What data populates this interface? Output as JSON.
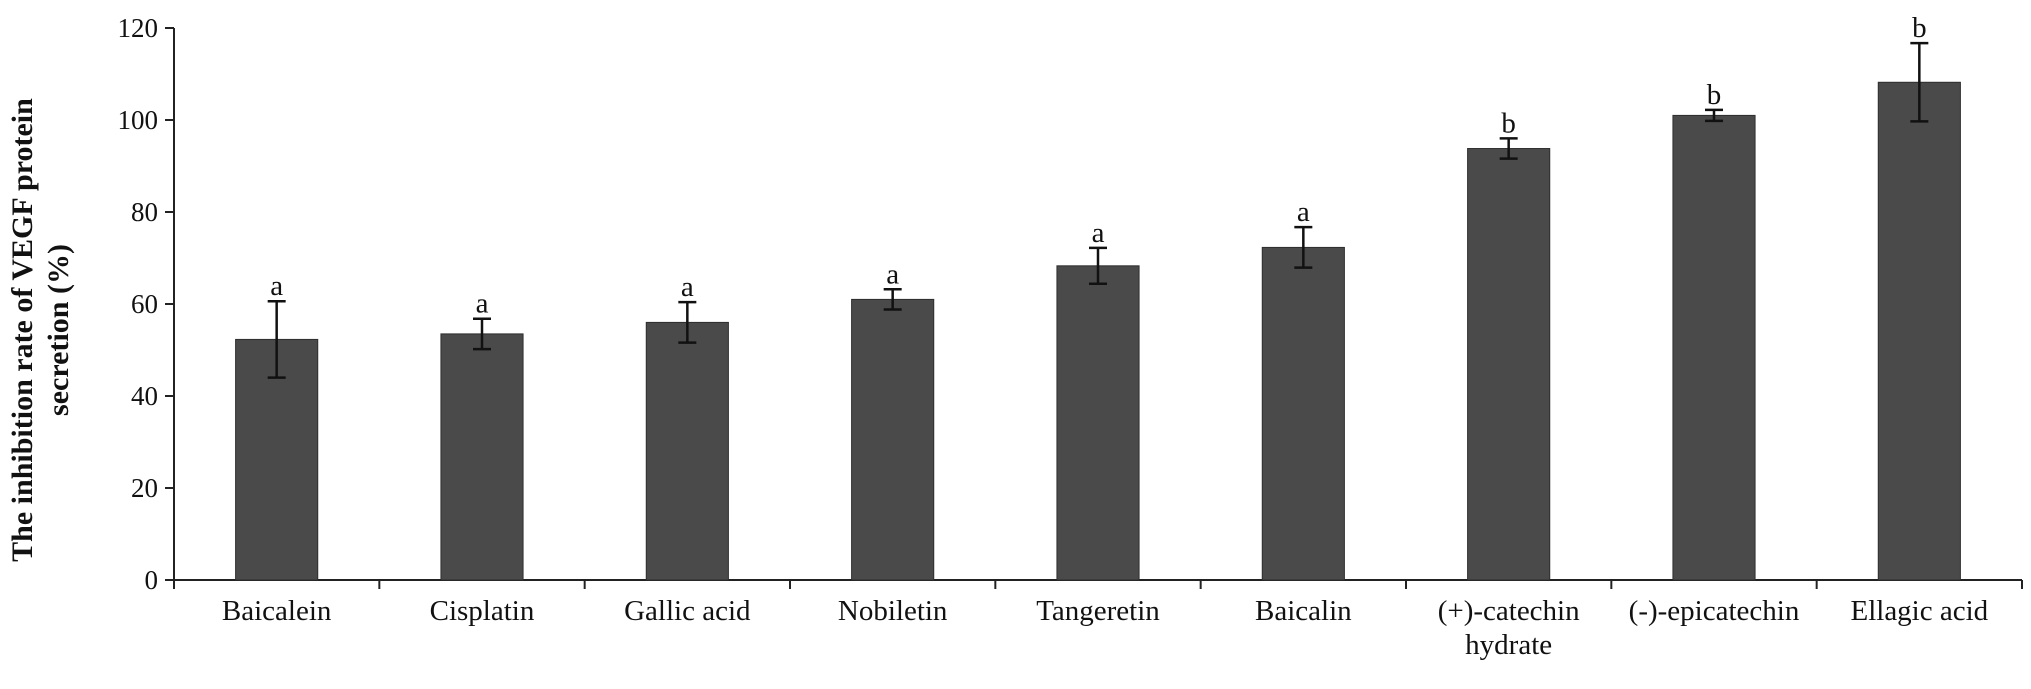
{
  "chart_data": {
    "type": "bar",
    "title": "",
    "xlabel": "",
    "ylabel_lines": [
      "The inhibition rate of VEGF protein",
      "secretion (%)"
    ],
    "ylim": [
      0,
      120
    ],
    "yticks": [
      0,
      20,
      40,
      60,
      80,
      100,
      120
    ],
    "categories": [
      [
        "Baicalein"
      ],
      [
        "Cisplatin"
      ],
      [
        "Gallic acid"
      ],
      [
        "Nobiletin"
      ],
      [
        "Tangeretin"
      ],
      [
        "Baicalin"
      ],
      [
        "(+)-catechin",
        "hydrate"
      ],
      [
        "(-)-epicatechin"
      ],
      [
        "Ellagic acid"
      ]
    ],
    "values": [
      52.3,
      53.5,
      56.0,
      61.0,
      68.3,
      72.3,
      93.8,
      101.0,
      108.2
    ],
    "errors": [
      8.3,
      3.3,
      4.4,
      2.2,
      3.9,
      4.4,
      2.2,
      1.2,
      8.5
    ],
    "significance": [
      "a",
      "a",
      "a",
      "a",
      "a",
      "a",
      "b",
      "b",
      "b"
    ],
    "bar_color": "#4a4a4a",
    "grid": false,
    "legend": "none"
  }
}
